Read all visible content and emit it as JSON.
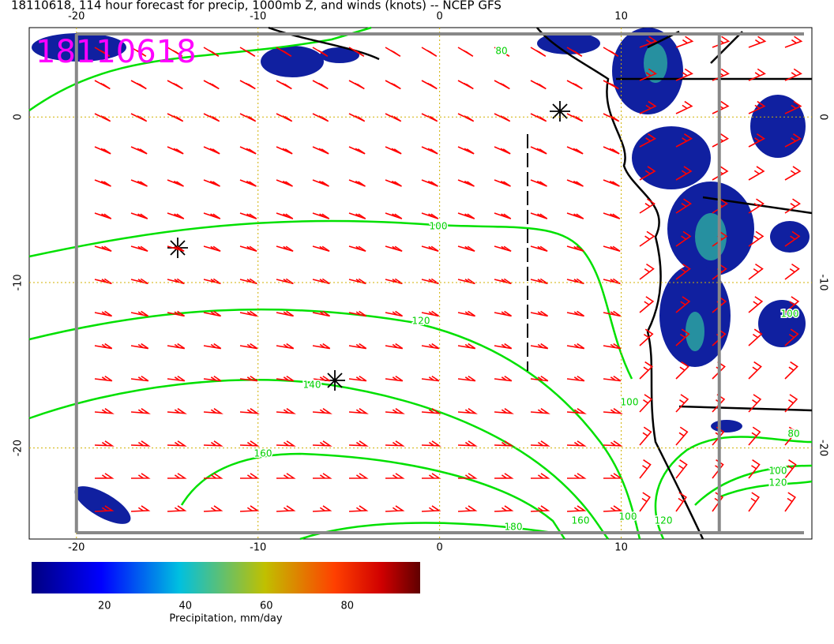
{
  "title": "18110618, 114 hour forecast for precip, 1000mb Z, and winds (knots) -- NCEP GFS",
  "stamp": "18110618",
  "map": {
    "xlim": [
      -22.6,
      20.5
    ],
    "ylim": [
      -25.5,
      5.4
    ],
    "xticks": [
      -20,
      -10,
      0,
      10
    ],
    "yticks": [
      0,
      -10,
      -20
    ],
    "grid": true,
    "contour_labels": [
      80,
      100,
      120,
      140,
      160,
      180,
      160,
      100,
      100,
      120,
      80,
      100,
      120,
      100
    ]
  },
  "colorbar": {
    "clim": [
      2,
      98
    ],
    "ticks": [
      20,
      40,
      60,
      80
    ],
    "label": "Precipitation, mm/day"
  }
}
